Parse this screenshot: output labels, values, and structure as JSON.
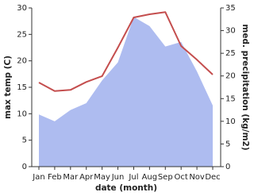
{
  "chart_data": {
    "type": "line",
    "x_label": "date (month)",
    "y_label": "max temp (C)",
    "y2_label": "med. precipitation (kg/m2)",
    "categories": [
      "Jan",
      "Feb",
      "Mar",
      "Apr",
      "May",
      "Jun",
      "Jul",
      "Aug",
      "Sep",
      "Oct",
      "Nov",
      "Dec"
    ],
    "series": [
      {
        "name": "med. precipitation (kg/m2)",
        "type": "area",
        "axis": "y2",
        "color": "#aebcf0",
        "values": [
          11.5,
          10,
          12.5,
          14,
          19,
          23,
          33,
          31,
          26.5,
          27.5,
          21,
          13.5
        ]
      },
      {
        "name": "max temp (C)",
        "type": "line",
        "color": "#c44e4e",
        "values": [
          15.9,
          14.3,
          14.5,
          16,
          17.1,
          22.5,
          28.2,
          28.8,
          29.2,
          22.8,
          20.2,
          17.4
        ]
      }
    ],
    "ylim": [
      0,
      30
    ],
    "yticks": [
      0,
      5,
      10,
      15,
      20,
      25,
      30
    ],
    "y2lim": [
      0,
      35
    ],
    "y2ticks": [
      0,
      5,
      10,
      15,
      20,
      25,
      30,
      35
    ]
  }
}
